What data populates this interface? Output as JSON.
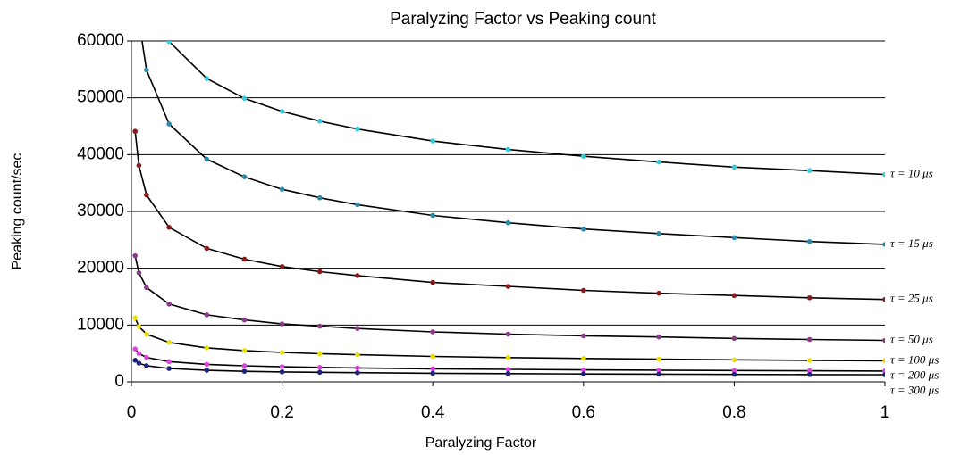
{
  "chart_data": {
    "type": "line",
    "title": "Paralyzing Factor vs Peaking count",
    "x_label": "Paralyzing Factor",
    "y_label": "Peaking count/sec",
    "x": [
      0.005,
      0.01,
      0.02,
      0.05,
      0.1,
      0.15,
      0.2,
      0.25,
      0.3,
      0.4,
      0.5,
      0.6,
      0.7,
      0.8,
      0.9,
      1
    ],
    "line_color": "#000000",
    "series": [
      {
        "name": "τ = 10 μs",
        "color": "#33ccdd",
        "values": [
          null,
          null,
          null,
          59900,
          53400,
          49900,
          47600,
          45900,
          44500,
          42400,
          40900,
          39700,
          38700,
          37800,
          37200,
          36500
        ]
      },
      {
        "name": "τ = 15 μs",
        "color": "#2a8aa8",
        "values": [
          null,
          63600,
          54900,
          45400,
          39200,
          36100,
          33900,
          32400,
          31200,
          29300,
          28000,
          26900,
          26100,
          25400,
          24700,
          24200
        ]
      },
      {
        "name": "τ = 25 μs",
        "color": "#8b1a1a",
        "values": [
          44100,
          38100,
          32900,
          27200,
          23500,
          21600,
          20300,
          19400,
          18700,
          17500,
          16800,
          16100,
          15600,
          15200,
          14800,
          14500
        ]
      },
      {
        "name": "τ = 50 μs",
        "color": "#8b3a8b",
        "values": [
          22200,
          19200,
          16600,
          13700,
          11800,
          10900,
          10200,
          9800,
          9400,
          8800,
          8400,
          8100,
          7900,
          7650,
          7460,
          7300
        ]
      },
      {
        "name": "τ = 100 μs",
        "color": "#e8e000",
        "values": [
          11250,
          9730,
          8400,
          6940,
          5990,
          5510,
          5180,
          4960,
          4770,
          4480,
          4280,
          4120,
          3990,
          3880,
          3780,
          3700
        ]
      },
      {
        "name": "τ = 200 μs",
        "color": "#e040e0",
        "values": [
          5780,
          5000,
          4310,
          3560,
          3080,
          2830,
          2660,
          2550,
          2450,
          2300,
          2200,
          2110,
          2050,
          1990,
          1940,
          1900
        ]
      },
      {
        "name": "τ = 300 μs",
        "color": "#1a237e",
        "values": [
          3800,
          3290,
          2840,
          2350,
          2030,
          1860,
          1750,
          1680,
          1610,
          1510,
          1450,
          1390,
          1350,
          1310,
          1280,
          1250
        ]
      }
    ],
    "xlim": [
      0,
      1
    ],
    "xticks": [
      0,
      0.2,
      0.4,
      0.6,
      0.8,
      1
    ],
    "ylim": [
      0,
      60000
    ],
    "yticks": [
      0,
      10000,
      20000,
      30000,
      40000,
      50000,
      60000
    ],
    "grid": true
  }
}
